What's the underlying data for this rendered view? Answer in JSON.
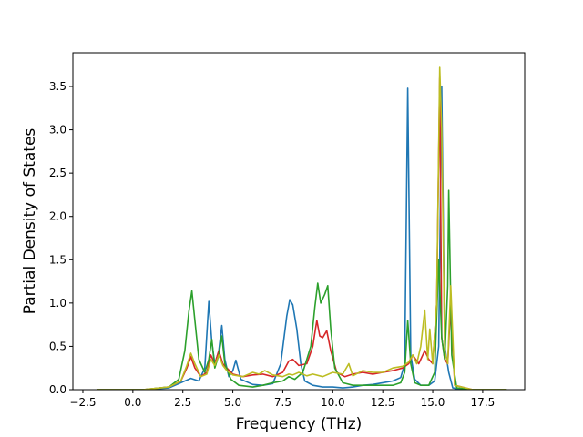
{
  "chart_data": {
    "type": "line",
    "title": "",
    "xlabel": "Frequency (THz)",
    "ylabel": "Partial Density of States",
    "xlim": [
      -3.0,
      19.6
    ],
    "ylim": [
      0,
      3.5
    ],
    "xticks": [
      -2.5,
      0.0,
      2.5,
      5.0,
      7.5,
      10.0,
      12.5,
      15.0,
      17.5
    ],
    "yticks": [
      0.0,
      0.5,
      1.0,
      1.5,
      2.0,
      2.5,
      3.0,
      3.5
    ],
    "xtick_labels": [
      "−2.5",
      "0.0",
      "2.5",
      "5.0",
      "7.5",
      "10.0",
      "12.5",
      "15.0",
      "17.5"
    ],
    "ytick_labels": [
      "0.0",
      "0.5",
      "1.0",
      "1.5",
      "2.0",
      "2.5",
      "3.0",
      "3.5"
    ],
    "grid": false,
    "series": [
      {
        "color": "#1f77b4",
        "x": [
          -1.8,
          0.5,
          1.8,
          2.4,
          2.9,
          3.3,
          3.6,
          3.8,
          3.95,
          4.1,
          4.3,
          4.45,
          4.6,
          4.8,
          5.0,
          5.15,
          5.4,
          6.0,
          6.5,
          7.0,
          7.4,
          7.7,
          7.85,
          8.0,
          8.2,
          8.4,
          8.6,
          9.0,
          9.5,
          10.0,
          10.5,
          11.0,
          11.5,
          12.0,
          12.5,
          13.0,
          13.4,
          13.6,
          13.75,
          13.9,
          14.1,
          14.4,
          14.8,
          15.1,
          15.3,
          15.45,
          15.6,
          15.8,
          16.0,
          16.5,
          17.5,
          18.7
        ],
        "y": [
          0,
          0,
          0.02,
          0.08,
          0.13,
          0.1,
          0.25,
          1.02,
          0.55,
          0.3,
          0.45,
          0.74,
          0.35,
          0.15,
          0.22,
          0.34,
          0.12,
          0.06,
          0.05,
          0.07,
          0.3,
          0.85,
          1.04,
          0.98,
          0.7,
          0.3,
          0.1,
          0.05,
          0.03,
          0.03,
          0.02,
          0.03,
          0.05,
          0.06,
          0.08,
          0.1,
          0.14,
          0.3,
          3.48,
          0.4,
          0.12,
          0.05,
          0.05,
          0.1,
          0.5,
          3.5,
          0.5,
          0.2,
          0.02,
          0,
          0,
          0
        ]
      },
      {
        "color": "#d62728",
        "x": [
          -1.8,
          0.5,
          1.8,
          2.4,
          2.7,
          2.9,
          3.1,
          3.4,
          3.7,
          3.9,
          4.1,
          4.3,
          4.5,
          4.7,
          5.0,
          5.5,
          6.0,
          6.5,
          7.0,
          7.5,
          7.8,
          8.0,
          8.3,
          8.7,
          9.0,
          9.2,
          9.35,
          9.5,
          9.7,
          9.9,
          10.2,
          10.6,
          11.0,
          11.5,
          12.0,
          12.5,
          13.0,
          13.5,
          13.8,
          14.0,
          14.3,
          14.6,
          14.8,
          15.0,
          15.2,
          15.35,
          15.45,
          15.6,
          15.75,
          15.9,
          16.1,
          17.0,
          18.7
        ],
        "y": [
          0,
          0,
          0.03,
          0.1,
          0.25,
          0.38,
          0.25,
          0.15,
          0.2,
          0.4,
          0.3,
          0.45,
          0.3,
          0.25,
          0.18,
          0.15,
          0.17,
          0.18,
          0.15,
          0.2,
          0.33,
          0.35,
          0.28,
          0.3,
          0.5,
          0.8,
          0.62,
          0.6,
          0.68,
          0.45,
          0.2,
          0.15,
          0.18,
          0.2,
          0.18,
          0.2,
          0.22,
          0.25,
          0.3,
          0.4,
          0.3,
          0.45,
          0.35,
          0.3,
          1.0,
          3.6,
          0.6,
          0.35,
          0.3,
          1.0,
          0.05,
          0,
          0
        ]
      },
      {
        "color": "#2ca02c",
        "x": [
          -1.8,
          0.5,
          1.8,
          2.3,
          2.6,
          2.8,
          2.95,
          3.1,
          3.3,
          3.6,
          3.8,
          3.95,
          4.1,
          4.3,
          4.45,
          4.6,
          4.9,
          5.3,
          6.0,
          6.5,
          7.0,
          7.5,
          7.8,
          8.1,
          8.5,
          8.9,
          9.1,
          9.25,
          9.4,
          9.6,
          9.75,
          9.9,
          10.1,
          10.5,
          11.0,
          11.5,
          12.0,
          12.5,
          13.0,
          13.4,
          13.6,
          13.75,
          13.9,
          14.1,
          14.4,
          14.8,
          15.1,
          15.3,
          15.45,
          15.6,
          15.75,
          15.8,
          15.95,
          16.2,
          17.0,
          18.7
        ],
        "y": [
          0,
          0,
          0.03,
          0.12,
          0.45,
          0.9,
          1.14,
          0.8,
          0.35,
          0.2,
          0.35,
          0.58,
          0.25,
          0.4,
          0.62,
          0.3,
          0.12,
          0.05,
          0.03,
          0.05,
          0.08,
          0.1,
          0.15,
          0.12,
          0.2,
          0.5,
          0.95,
          1.23,
          1.0,
          1.1,
          1.2,
          0.7,
          0.25,
          0.08,
          0.05,
          0.05,
          0.05,
          0.05,
          0.05,
          0.08,
          0.2,
          0.8,
          0.3,
          0.08,
          0.05,
          0.05,
          0.2,
          1.5,
          0.6,
          0.35,
          1.2,
          2.3,
          0.4,
          0.02,
          0,
          0
        ]
      },
      {
        "color": "#bcbd22",
        "x": [
          -1.8,
          0.5,
          1.8,
          2.4,
          2.7,
          2.9,
          3.1,
          3.4,
          3.7,
          3.9,
          4.1,
          4.3,
          4.5,
          4.7,
          5.0,
          5.5,
          6.0,
          6.3,
          6.6,
          7.0,
          7.5,
          7.8,
          8.0,
          8.3,
          8.7,
          9.0,
          9.5,
          10.0,
          10.5,
          10.8,
          11.0,
          11.5,
          12.0,
          12.5,
          13.0,
          13.5,
          13.8,
          14.0,
          14.2,
          14.4,
          14.6,
          14.75,
          14.85,
          15.0,
          15.2,
          15.35,
          15.45,
          15.6,
          15.75,
          15.9,
          16.1,
          17.0,
          18.7
        ],
        "y": [
          0,
          0,
          0.03,
          0.1,
          0.28,
          0.42,
          0.3,
          0.15,
          0.18,
          0.35,
          0.28,
          0.4,
          0.28,
          0.22,
          0.17,
          0.15,
          0.2,
          0.18,
          0.22,
          0.17,
          0.15,
          0.18,
          0.17,
          0.2,
          0.16,
          0.18,
          0.15,
          0.2,
          0.18,
          0.3,
          0.16,
          0.22,
          0.2,
          0.2,
          0.25,
          0.27,
          0.32,
          0.4,
          0.3,
          0.5,
          0.92,
          0.35,
          0.7,
          0.3,
          1.0,
          3.72,
          3.0,
          0.45,
          0.3,
          1.2,
          0.05,
          0,
          0
        ]
      }
    ]
  }
}
